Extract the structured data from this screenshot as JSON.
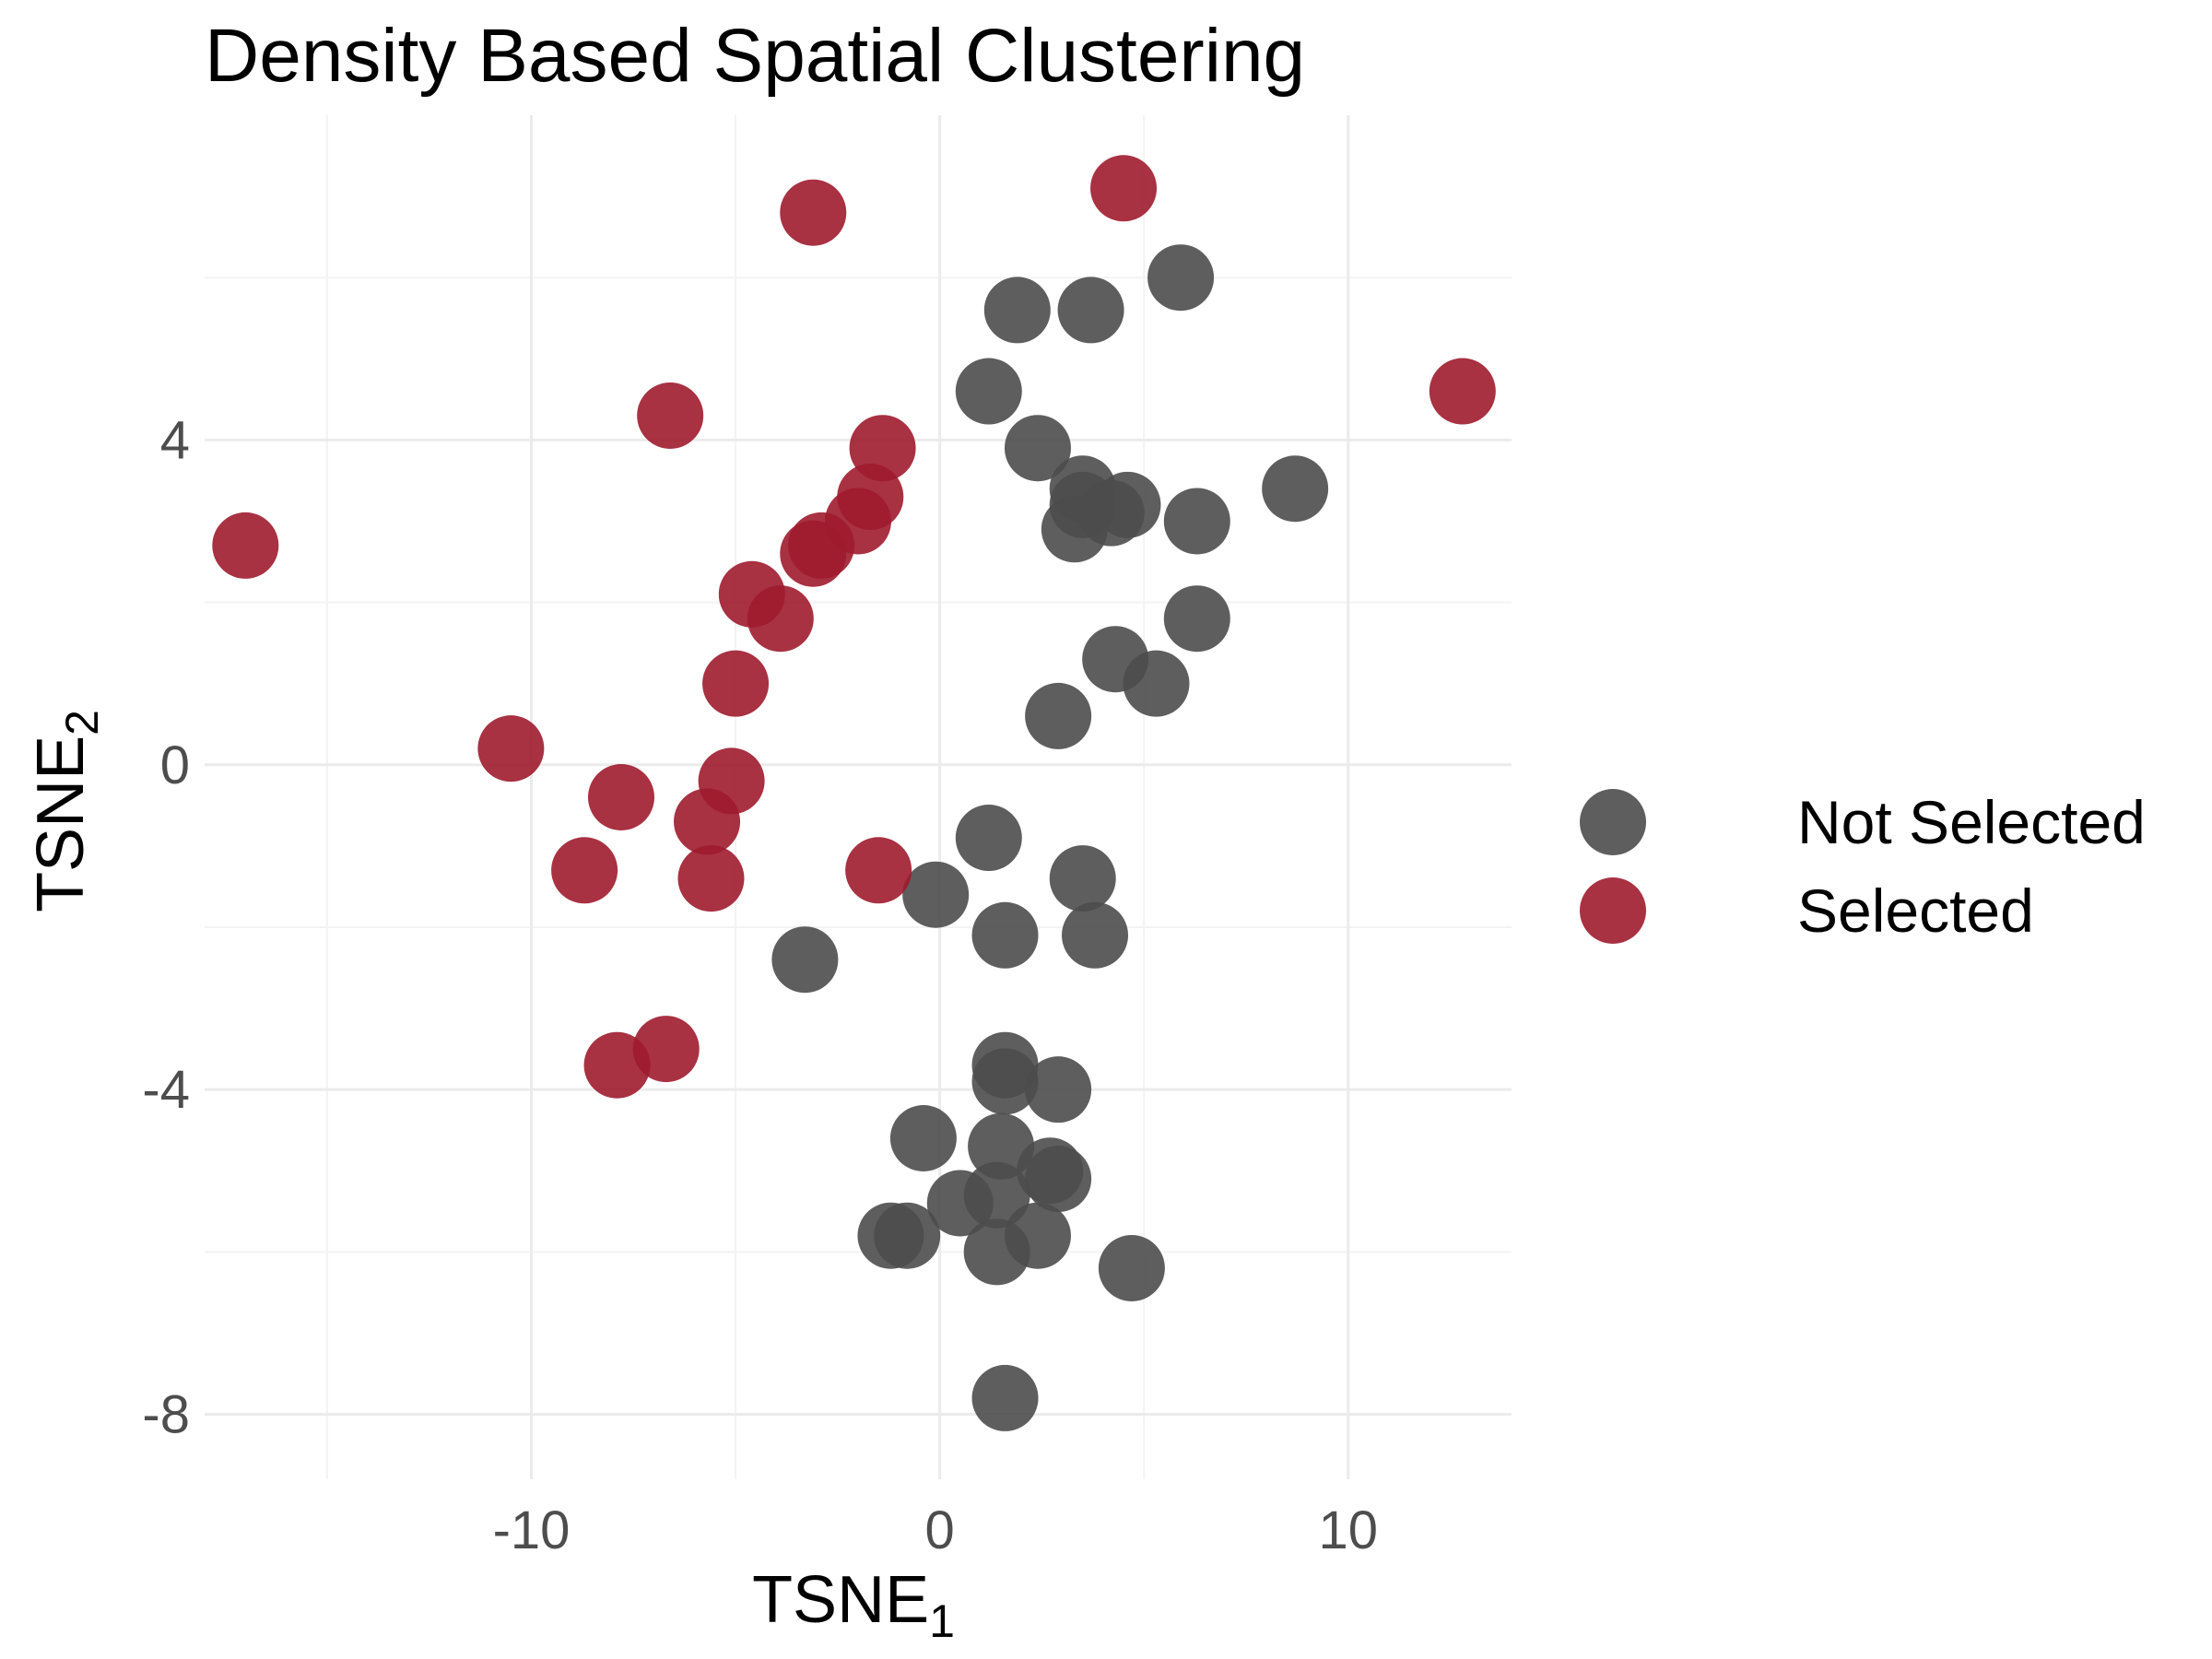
{
  "chart_data": {
    "type": "scatter",
    "title": "Density Based Spatial Clustering",
    "xlabel": {
      "base": "TSNE",
      "sub": "1"
    },
    "ylabel": {
      "base": "TSNE",
      "sub": "2"
    },
    "xlim": [
      -18,
      14
    ],
    "ylim": [
      -8.8,
      8.0
    ],
    "x_ticks": [
      -10,
      0,
      10
    ],
    "x_tick_labels": [
      "-10",
      "0",
      "10"
    ],
    "y_ticks": [
      -8,
      -4,
      0,
      4
    ],
    "y_tick_labels": [
      "-8",
      "-4",
      "0",
      "4"
    ],
    "grid": true,
    "legend_position": "right",
    "legend": [
      {
        "label": "Not Selected",
        "color": "#4d4d4d"
      },
      {
        "label": "Selected",
        "color": "#9e1b2e"
      }
    ],
    "series": [
      {
        "name": "Not Selected",
        "color": "#4d4d4d",
        "points": [
          [
            5.9,
            6.0
          ],
          [
            1.9,
            5.6
          ],
          [
            3.7,
            5.6
          ],
          [
            1.2,
            4.6
          ],
          [
            2.4,
            3.9
          ],
          [
            3.5,
            3.4
          ],
          [
            4.6,
            3.2
          ],
          [
            3.5,
            3.2
          ],
          [
            4.2,
            3.1
          ],
          [
            3.3,
            2.9
          ],
          [
            6.3,
            3.0
          ],
          [
            8.7,
            3.4
          ],
          [
            6.3,
            1.8
          ],
          [
            4.3,
            1.3
          ],
          [
            5.3,
            1.0
          ],
          [
            2.9,
            0.6
          ],
          [
            1.2,
            -0.9
          ],
          [
            3.5,
            -1.4
          ],
          [
            -0.1,
            -1.6
          ],
          [
            1.6,
            -2.1
          ],
          [
            3.8,
            -2.1
          ],
          [
            -3.3,
            -2.4
          ],
          [
            1.6,
            -3.7
          ],
          [
            1.6,
            -3.9
          ],
          [
            2.9,
            -4.0
          ],
          [
            -0.4,
            -4.6
          ],
          [
            1.5,
            -4.7
          ],
          [
            2.7,
            -5.0
          ],
          [
            2.9,
            -5.1
          ],
          [
            1.4,
            -5.3
          ],
          [
            0.5,
            -5.4
          ],
          [
            -1.2,
            -5.8
          ],
          [
            -0.8,
            -5.8
          ],
          [
            2.4,
            -5.8
          ],
          [
            1.4,
            -6.0
          ],
          [
            4.7,
            -6.2
          ],
          [
            1.6,
            -7.8
          ]
        ]
      },
      {
        "name": "Selected",
        "color": "#9e1b2e",
        "points": [
          [
            -3.1,
            6.8
          ],
          [
            4.5,
            7.1
          ],
          [
            12.8,
            4.6
          ],
          [
            -6.6,
            4.3
          ],
          [
            -1.4,
            3.9
          ],
          [
            -1.7,
            3.3
          ],
          [
            -2.0,
            3.0
          ],
          [
            -2.9,
            2.7
          ],
          [
            -3.1,
            2.6
          ],
          [
            -17.0,
            2.7
          ],
          [
            -4.6,
            2.1
          ],
          [
            -3.9,
            1.8
          ],
          [
            -5.0,
            1.0
          ],
          [
            -10.5,
            0.2
          ],
          [
            -7.8,
            -0.4
          ],
          [
            -5.1,
            -0.2
          ],
          [
            -5.7,
            -0.7
          ],
          [
            -8.7,
            -1.3
          ],
          [
            -5.6,
            -1.4
          ],
          [
            -1.5,
            -1.3
          ],
          [
            -6.7,
            -3.5
          ],
          [
            -7.9,
            -3.7
          ]
        ]
      }
    ]
  }
}
